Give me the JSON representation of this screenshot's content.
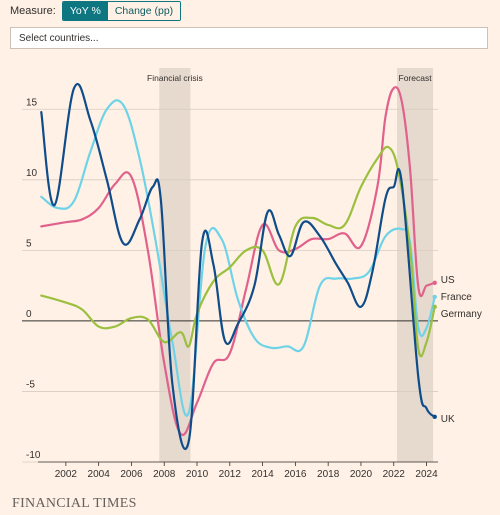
{
  "controls": {
    "measure_label": "Measure:",
    "options": [
      "YoY %",
      "Change (pp)"
    ],
    "selected": "YoY %",
    "search_placeholder": "Select countries..."
  },
  "footer": {
    "source": "FINANCIAL TIMES"
  },
  "colors": {
    "background": "#fff1e5",
    "accent": "#0d7680",
    "shade": "#e6d9ce",
    "US": "#e0628c",
    "France": "#6fd3e8",
    "Germany": "#9bbf3f",
    "UK": "#0f4c8a"
  },
  "chart_data": {
    "type": "line",
    "title": "",
    "xlabel": "",
    "ylabel": "",
    "xlim": [
      2000.3,
      2024.7
    ],
    "ylim": [
      -10,
      17.5
    ],
    "x_ticks": [
      2002,
      2004,
      2006,
      2008,
      2010,
      2012,
      2014,
      2016,
      2018,
      2020,
      2022,
      2024
    ],
    "y_ticks": [
      -10,
      -5,
      0,
      5,
      10,
      15
    ],
    "grid": true,
    "legend": "labels at right end of each line",
    "shaded_regions": [
      {
        "label": "Financial crisis",
        "from": 2007.7,
        "to": 2009.6
      },
      {
        "label": "Forecast",
        "from": 2022.2,
        "to": 2024.4
      }
    ],
    "series": [
      {
        "name": "US",
        "x": [
          2000.5,
          2002,
          2003,
          2004,
          2005,
          2006,
          2007,
          2008,
          2009,
          2010,
          2011,
          2012,
          2013,
          2014,
          2015,
          2016,
          2017,
          2018,
          2019,
          2020,
          2021,
          2021.5,
          2022,
          2022.5,
          2023,
          2023.5,
          2024,
          2024.5
        ],
        "y": [
          6.7,
          7,
          7.2,
          8,
          9.7,
          10.2,
          5,
          -3,
          -8,
          -5.8,
          -3,
          -2.3,
          2.3,
          6.8,
          5,
          5.1,
          5.8,
          5.8,
          6.2,
          5.3,
          9.5,
          14.5,
          16.5,
          15.5,
          10.7,
          2.4,
          2.5,
          2.7
        ]
      },
      {
        "name": "France",
        "x": [
          2000.5,
          2001.5,
          2002.5,
          2003.5,
          2004.5,
          2005.5,
          2006.5,
          2007.5,
          2008.5,
          2009.5,
          2010.5,
          2011.5,
          2012.5,
          2013.5,
          2014.5,
          2015.5,
          2016.5,
          2017.5,
          2018.5,
          2019.5,
          2020.5,
          2021.5,
          2022.5,
          2023,
          2023.5,
          2024,
          2024.5
        ],
        "y": [
          8.8,
          8,
          8.5,
          12,
          15,
          15.3,
          11.5,
          5.5,
          -1.5,
          -6.5,
          5.2,
          5.8,
          1.5,
          -1.2,
          -1.9,
          -1.8,
          -1.8,
          2.5,
          3,
          3,
          3.5,
          6,
          6.5,
          5.5,
          -0.5,
          -0.5,
          1.7
        ]
      },
      {
        "name": "Germany",
        "x": [
          2000.5,
          2002,
          2003,
          2004,
          2005,
          2006,
          2007,
          2008,
          2009,
          2009.5,
          2010,
          2011,
          2012,
          2013,
          2014,
          2015,
          2016,
          2017,
          2018,
          2019,
          2020,
          2021,
          2021.7,
          2022.3,
          2023,
          2023.5,
          2024,
          2024.5
        ],
        "y": [
          1.8,
          1.3,
          0.8,
          -0.4,
          -0.4,
          0.2,
          0.1,
          -1.5,
          -0.8,
          -1.8,
          0.5,
          2.8,
          3.8,
          5,
          5,
          2.6,
          6.7,
          7.3,
          6.8,
          6.8,
          9.5,
          11.5,
          12.3,
          10.5,
          5,
          -2,
          -1.5,
          1
        ]
      },
      {
        "name": "UK",
        "x": [
          2000.5,
          2001.3,
          2002.5,
          2003.5,
          2004.5,
          2005.5,
          2006.5,
          2007.3,
          2007.8,
          2008.5,
          2009.5,
          2010.3,
          2011,
          2011.7,
          2012.5,
          2013.5,
          2014.3,
          2015,
          2015.7,
          2016.5,
          2017.5,
          2018.5,
          2019.2,
          2020,
          2020.7,
          2021.5,
          2022,
          2022.5,
          2023.5,
          2024,
          2024.5
        ],
        "y": [
          14.8,
          8.2,
          16.5,
          14.2,
          10,
          5.5,
          7.2,
          9.5,
          8.5,
          -4.5,
          -8.5,
          5.5,
          4,
          -1.4,
          -0.2,
          2.5,
          7.7,
          6.1,
          4.6,
          7,
          6,
          4,
          2.7,
          1,
          3.5,
          8.7,
          9.5,
          9.7,
          -4,
          -6.2,
          -6.8
        ]
      }
    ]
  }
}
